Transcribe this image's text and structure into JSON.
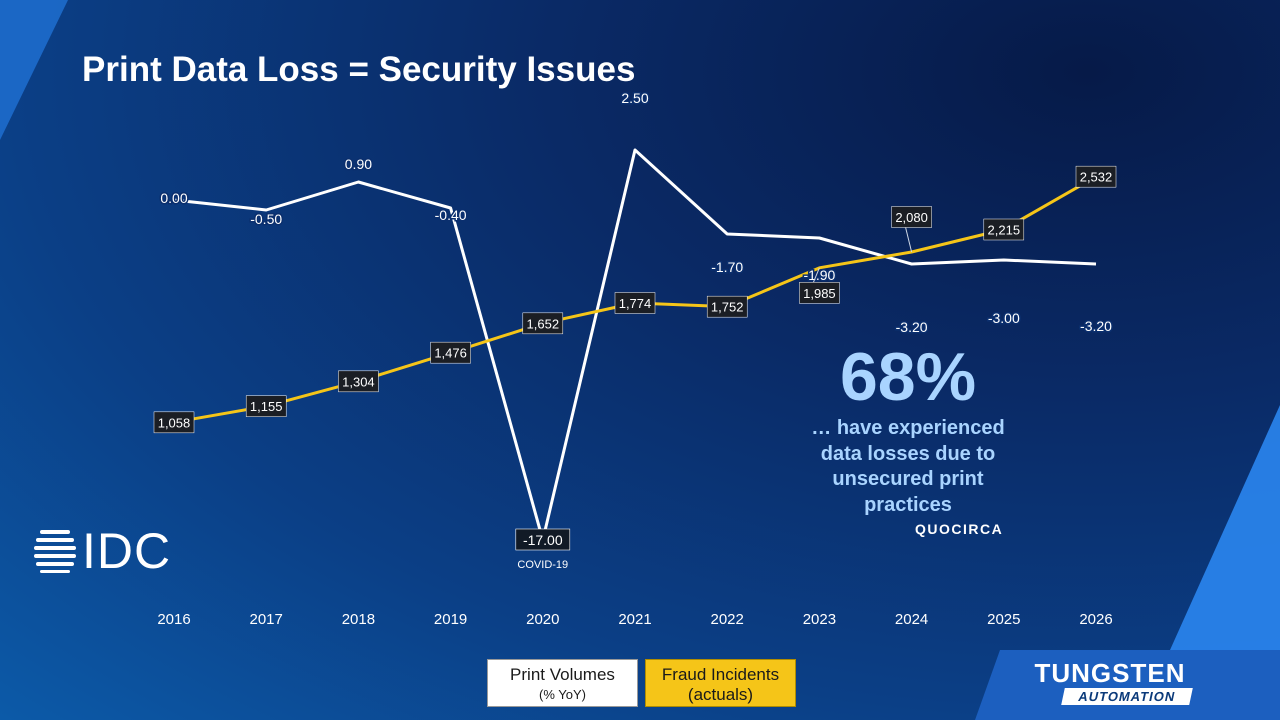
{
  "slide": {
    "title": "Print Data Loss = Security Issues"
  },
  "chart_data": {
    "type": "line",
    "title": "Print Data Loss = Security Issues",
    "categories": [
      "2016",
      "2017",
      "2018",
      "2019",
      "2020",
      "2021",
      "2022",
      "2023",
      "2024",
      "2025",
      "2026"
    ],
    "series": [
      {
        "name": "Print Volumes (% YoY)",
        "color": "#ffffff",
        "values": [
          0.0,
          -0.5,
          0.9,
          -0.4,
          -17.0,
          2.5,
          -1.7,
          -1.9,
          -3.2,
          -3.0,
          -3.2
        ],
        "labels": [
          "0.00",
          "-0.50",
          "0.90",
          "-0.40",
          "-17.00",
          "2.50",
          "-1.70",
          "-1.90",
          "-3.20",
          "-3.00",
          "-3.20"
        ]
      },
      {
        "name": "Fraud Incidents (actuals)",
        "color": "#f5c518",
        "values": [
          1058,
          1155,
          1304,
          1476,
          1652,
          1774,
          1752,
          1985,
          2080,
          2215,
          2532
        ],
        "labels": [
          "1,058",
          "1,155",
          "1,304",
          "1,476",
          "1,652",
          "1,774",
          "1,752",
          "1,985",
          "2,080",
          "2,215",
          "2,532"
        ]
      }
    ],
    "annotations": [
      {
        "category": "2020",
        "text": "COVID-19"
      }
    ],
    "legend": {
      "print_label": "Print Volumes",
      "print_sub": "(% YoY)",
      "fraud_label": "Fraud Incidents",
      "fraud_sub": "(actuals)",
      "placement": "bottom-center"
    }
  },
  "logo": {
    "text": "IDC"
  },
  "callout": {
    "big_number": "68%",
    "lines": [
      "… have experienced",
      "data losses due to",
      "unsecured print",
      "practices"
    ],
    "source": "QUOCIRCA"
  },
  "brand": {
    "top": "TUNGSTEN",
    "bottom": "AUTOMATION"
  },
  "colors": {
    "accent_yellow": "#f5c518",
    "callout_blue": "#a9d4ff"
  }
}
